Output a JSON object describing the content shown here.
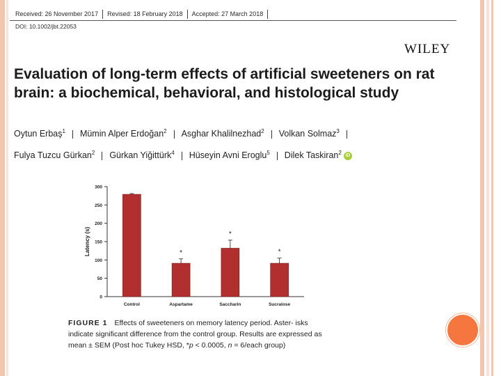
{
  "header": {
    "received": "Received: 26 November 2017",
    "revised": "Revised: 18 February 2018",
    "accepted": "Accepted: 27 March 2018",
    "doi": "DOI: 10.1002/jbt.22053",
    "publisher": "WILEY",
    "title": "Evaluation of long-term effects of artificial sweeteners on rat brain: a biochemical, behavioral, and histological study"
  },
  "authors": [
    {
      "name": "Oytun Erbaş",
      "sup": "1"
    },
    {
      "name": "Mümin Alper Erdoğan",
      "sup": "2"
    },
    {
      "name": "Asghar Khalilnezhad",
      "sup": "2"
    },
    {
      "name": "Volkan Solmaz",
      "sup": "3"
    },
    {
      "name": "Fulya Tuzcu Gürkan",
      "sup": "2"
    },
    {
      "name": "Gürkan Yiğittürk",
      "sup": "4"
    },
    {
      "name": "Hüseyin Avni Eroglu",
      "sup": "5"
    },
    {
      "name": "Dilek Taskiran",
      "sup": "2"
    }
  ],
  "orcid_label": "iD",
  "figure": {
    "label": "FIGURE 1",
    "caption_line1": "Effects of sweeteners on memory latency period. Aster-",
    "caption_line2": "isks indicate significant difference from the control group. Results are",
    "caption_line3a": "expressed as mean ± SEM (Post hoc Tukey HSD, *",
    "caption_p": "p",
    "caption_line3b": " < 0.0005, ",
    "caption_n": "n",
    "caption_line3c": " = 6/each",
    "caption_line4": "group)"
  },
  "chart_data": {
    "type": "bar",
    "title": "",
    "xlabel": "",
    "ylabel": "Latency (s)",
    "categories": [
      "Control",
      "Aspartame",
      "Saccharin",
      "Sucralose"
    ],
    "values": [
      279,
      91,
      132,
      91
    ],
    "errors": [
      2,
      12,
      22,
      14
    ],
    "significance": [
      "",
      "*",
      "*",
      "*"
    ],
    "ylim": [
      0,
      300
    ],
    "yticks": [
      "0",
      "50",
      "100",
      "150",
      "200",
      "250",
      "300"
    ],
    "grid": false,
    "bar_color": "#b22f2f"
  }
}
